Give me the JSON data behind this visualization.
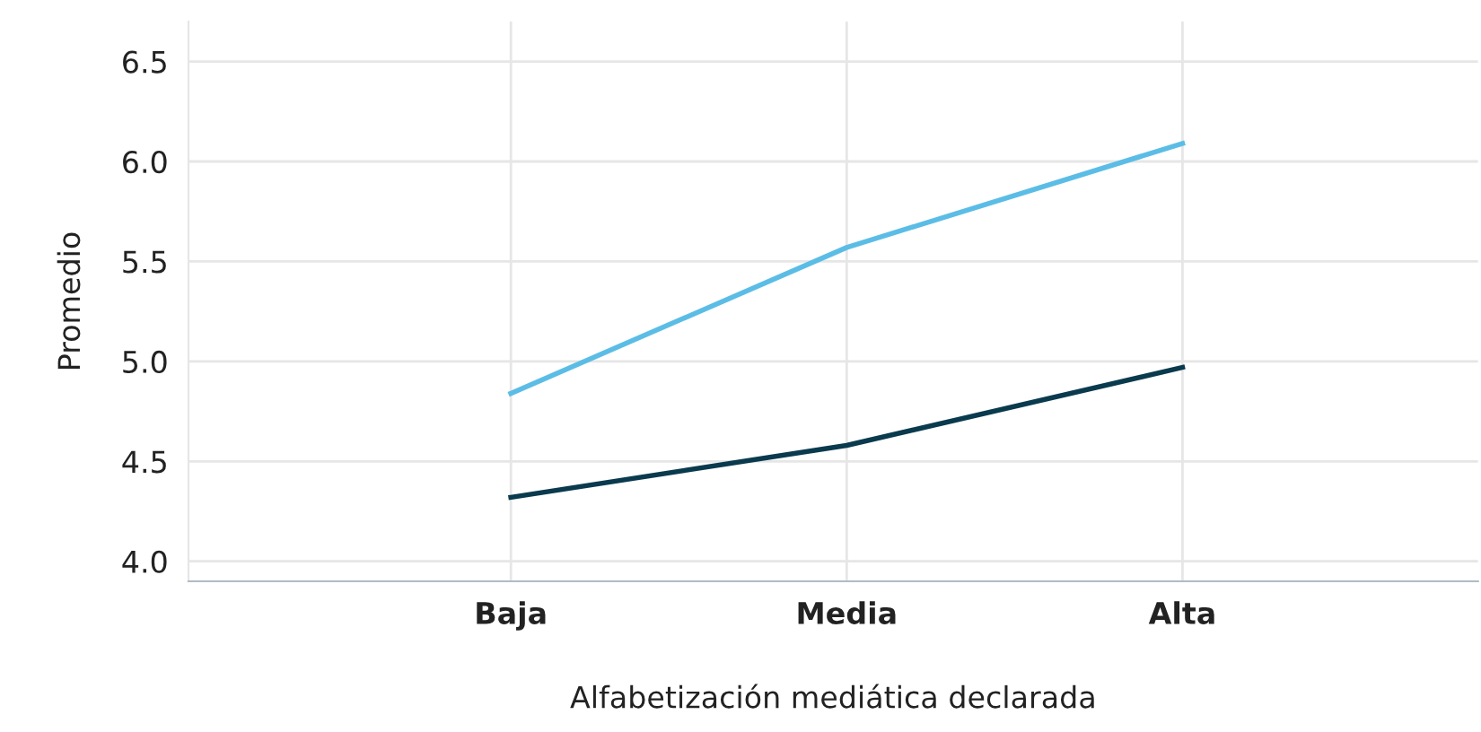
{
  "chart_data": {
    "type": "line",
    "xlabel": "Alfabetización mediática declarada",
    "ylabel": "Promedio",
    "categories": [
      "Baja",
      "Media",
      "Alta"
    ],
    "series": [
      {
        "color": "#5bbde6",
        "values": [
          4.84,
          5.57,
          6.09
        ]
      },
      {
        "color": "#0a3a4e",
        "values": [
          4.32,
          4.58,
          4.97
        ]
      }
    ],
    "ylim": [
      3.9,
      6.7
    ],
    "yticks": [
      {
        "value": 4,
        "label": "4.0"
      },
      4.5,
      {
        "value": 5,
        "label": "5.0"
      },
      5.5,
      {
        "value": 6,
        "label": "6.0"
      },
      6.5
    ],
    "grid": true,
    "marker": "none",
    "line_style": "solid"
  }
}
